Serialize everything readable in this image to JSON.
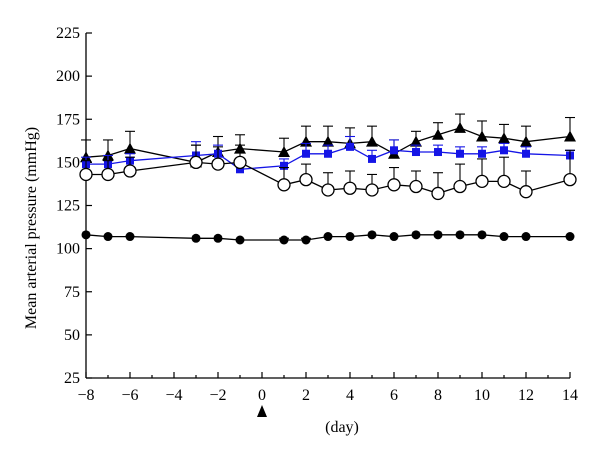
{
  "chart_data": {
    "type": "line",
    "xlabel": "(day)",
    "ylabel": "Mean arterial pressure (mmHg)",
    "xlim": [
      -8,
      14
    ],
    "ylim": [
      25,
      225
    ],
    "xticks": [
      -8,
      -6,
      -4,
      -2,
      0,
      2,
      4,
      6,
      8,
      10,
      12,
      14
    ],
    "yticks": [
      25,
      50,
      75,
      100,
      125,
      150,
      175,
      200,
      225
    ],
    "x_marker": 0,
    "series": [
      {
        "marker": "triangle",
        "color": "#000000",
        "x": [
          -8,
          -7,
          -6,
          -3,
          -2,
          -1,
          1,
          2,
          3,
          4,
          5,
          6,
          7,
          8,
          9,
          10,
          11,
          12,
          14
        ],
        "values": [
          153,
          154,
          158,
          150,
          156,
          158,
          156,
          162,
          162,
          161,
          162,
          155,
          162,
          166,
          170,
          165,
          164,
          162,
          165
        ],
        "errors": [
          10,
          9,
          10,
          10,
          9,
          8,
          8,
          9,
          9,
          9,
          9,
          8,
          6,
          7,
          8,
          9,
          8,
          9,
          11
        ]
      },
      {
        "marker": "square",
        "color": "#1515e6",
        "x": [
          -8,
          -7,
          -6,
          -3,
          -2,
          -1,
          1,
          2,
          3,
          4,
          5,
          6,
          7,
          8,
          9,
          10,
          11,
          12,
          14
        ],
        "values": [
          149,
          149,
          151,
          154,
          155,
          146,
          148,
          155,
          155,
          159,
          152,
          157,
          156,
          156,
          155,
          155,
          157,
          155,
          154
        ],
        "errors": [
          4,
          5,
          4,
          8,
          5,
          6,
          4,
          6,
          5,
          6,
          5,
          6,
          4,
          4,
          4,
          4,
          4,
          4,
          3
        ]
      },
      {
        "marker": "circle-open",
        "color": "#000000",
        "x": [
          -8,
          -7,
          -6,
          -3,
          -2,
          -1,
          1,
          2,
          3,
          4,
          5,
          6,
          7,
          8,
          9,
          10,
          11,
          12,
          14
        ],
        "values": [
          143,
          143,
          145,
          150,
          149,
          150,
          137,
          140,
          134,
          135,
          134,
          137,
          136,
          132,
          136,
          139,
          139,
          133,
          140
        ],
        "errors": [
          8,
          8,
          8,
          10,
          10,
          10,
          10,
          9,
          10,
          10,
          9,
          10,
          9,
          12,
          13,
          13,
          14,
          12,
          17
        ]
      },
      {
        "marker": "circle-filled",
        "color": "#000000",
        "x": [
          -8,
          -7,
          -6,
          -3,
          -2,
          -1,
          1,
          2,
          3,
          4,
          5,
          6,
          7,
          8,
          9,
          10,
          11,
          12,
          14
        ],
        "values": [
          108,
          107,
          107,
          106,
          106,
          105,
          105,
          105,
          107,
          107,
          108,
          107,
          108,
          108,
          108,
          108,
          107,
          107,
          107
        ],
        "errors": [
          0,
          0,
          0,
          0,
          0,
          0,
          1,
          1,
          0,
          0,
          0,
          0,
          0,
          0,
          0,
          0,
          0,
          0,
          0
        ]
      }
    ]
  }
}
